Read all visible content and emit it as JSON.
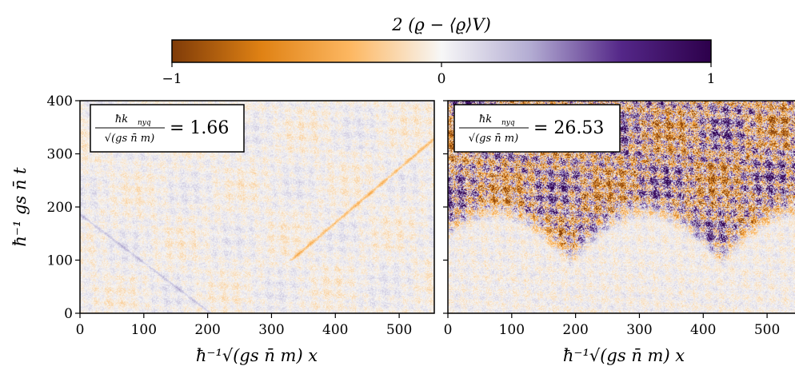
{
  "colorbar": {
    "title": "2 (ϱ − ⟨ϱ⟩V)",
    "ticks": [
      "−1",
      "0",
      "1"
    ],
    "range": [
      -1,
      1
    ],
    "colormap": [
      "#7f3b08",
      "#e08214",
      "#fdb863",
      "#f7f7f7",
      "#b2abd2",
      "#542788",
      "#2d004b"
    ]
  },
  "chart_data": [
    {
      "type": "heatmap",
      "annotation": {
        "numerator": "ħk",
        "numerator_sub": "nyq",
        "denominator": "√(gs n̄ m)",
        "value": "= 1.66"
      },
      "xlabel": "ħ⁻¹√(gs n̄ m) x",
      "ylabel": "ħ⁻¹ gs n̄ t",
      "xlim": [
        0,
        555
      ],
      "ylim": [
        0,
        400
      ],
      "xticks": [
        0,
        100,
        200,
        300,
        400,
        500
      ],
      "yticks": [
        0,
        100,
        200,
        300,
        400
      ],
      "value_range": [
        -1,
        1
      ],
      "description_pattern": "weak interference",
      "amplitude": 0.18
    },
    {
      "type": "heatmap",
      "annotation": {
        "numerator": "ħk",
        "numerator_sub": "nyq",
        "denominator": "√(gs n̄ m)",
        "value": "= 26.53"
      },
      "xlabel": "ħ⁻¹√(gs n̄ m) x",
      "ylabel": "",
      "xlim": [
        0,
        555
      ],
      "ylim": [
        0,
        400
      ],
      "xticks": [
        0,
        100,
        200,
        300,
        400,
        500
      ],
      "yticks": [
        0,
        100,
        200,
        300,
        400
      ],
      "value_range": [
        -1,
        1
      ],
      "amplitude": 0.9
    }
  ]
}
